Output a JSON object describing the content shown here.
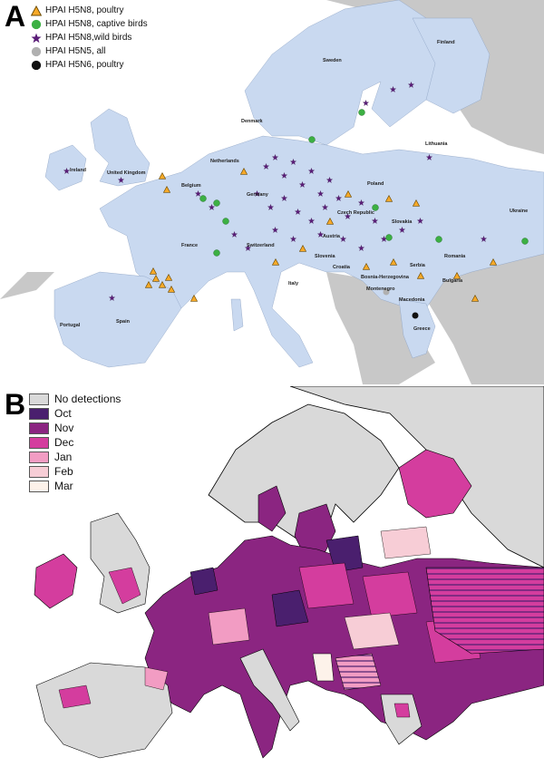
{
  "panel_a": {
    "letter": "A",
    "legend": [
      {
        "label": "HPAI H5N8, poultry",
        "symbol": "triangle",
        "color": "#f7a928"
      },
      {
        "label": "HPAI H5N8, captive birds",
        "symbol": "circle",
        "color": "#3cb043"
      },
      {
        "label": "HPAI H5N8,wild birds",
        "symbol": "star",
        "color": "#5a1d78"
      },
      {
        "label": "HPAI H5N5, all",
        "symbol": "circle",
        "color": "#b0b0b0"
      },
      {
        "label": "HPAI H5N6, poultry",
        "symbol": "circle",
        "color": "#111111"
      }
    ],
    "country_labels": [
      "Finland",
      "Sweden",
      "Denmark",
      "Lithuania",
      "Ireland",
      "United Kingdom",
      "Netherlands",
      "Belgium",
      "Germany",
      "Poland",
      "Czech Republic",
      "Slovakia",
      "Ukraine",
      "France",
      "Switzerland",
      "Austria",
      "Slovenia",
      "Croatia",
      "Romania",
      "Serbia",
      "Bosnia-Herzegovina",
      "Montenegro",
      "Bulgaria",
      "Macedonia",
      "Italy",
      "Portugal",
      "Spain",
      "Greece"
    ],
    "colors": {
      "sea": "#ffffff",
      "affected_land": "#c9d9f0",
      "other_land": "#c8c8c8"
    }
  },
  "panel_b": {
    "letter": "B",
    "legend": [
      {
        "label": "No detections",
        "color": "#d9d9d9"
      },
      {
        "label": "Oct",
        "color": "#4a1f6e"
      },
      {
        "label": "Nov",
        "color": "#8b2581"
      },
      {
        "label": "Dec",
        "color": "#d43d9e"
      },
      {
        "label": "Jan",
        "color": "#f29cc3"
      },
      {
        "label": "Feb",
        "color": "#f7cdd6"
      },
      {
        "label": "Mar",
        "color": "#fdf2ea"
      }
    ]
  }
}
